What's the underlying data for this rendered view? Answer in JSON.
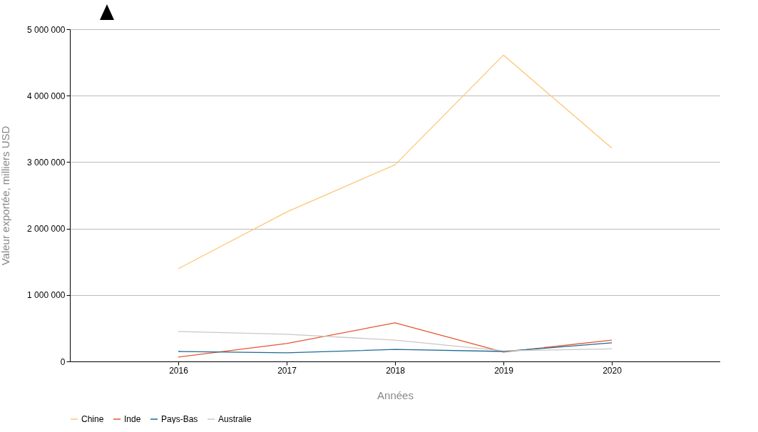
{
  "chart_data": {
    "type": "line",
    "xlabel": "Années",
    "ylabel": "Valeur exportée, milliers USD",
    "x": [
      2016,
      2017,
      2018,
      2019,
      2020
    ],
    "series": [
      {
        "name": "Chine",
        "color": "#fdc674",
        "values": [
          1395000,
          2250000,
          2960000,
          4610000,
          3210000
        ]
      },
      {
        "name": "Inde",
        "color": "#e8552e",
        "values": [
          65000,
          270000,
          580000,
          140000,
          320000
        ]
      },
      {
        "name": "Pays-Bas",
        "color": "#1f6b94",
        "values": [
          150000,
          130000,
          180000,
          150000,
          280000
        ]
      },
      {
        "name": "Australie",
        "color": "#c8c8c8",
        "values": [
          450000,
          410000,
          320000,
          160000,
          190000
        ]
      }
    ],
    "xlim": [
      2015,
      2021
    ],
    "xticks": [
      2016,
      2017,
      2018,
      2019,
      2020
    ],
    "ylim": [
      0,
      5000000
    ],
    "yticks": [
      0,
      1000000,
      2000000,
      3000000,
      4000000,
      5000000
    ],
    "grid": "y",
    "legend": "bottom",
    "marker": "none",
    "line_style": "solid"
  }
}
